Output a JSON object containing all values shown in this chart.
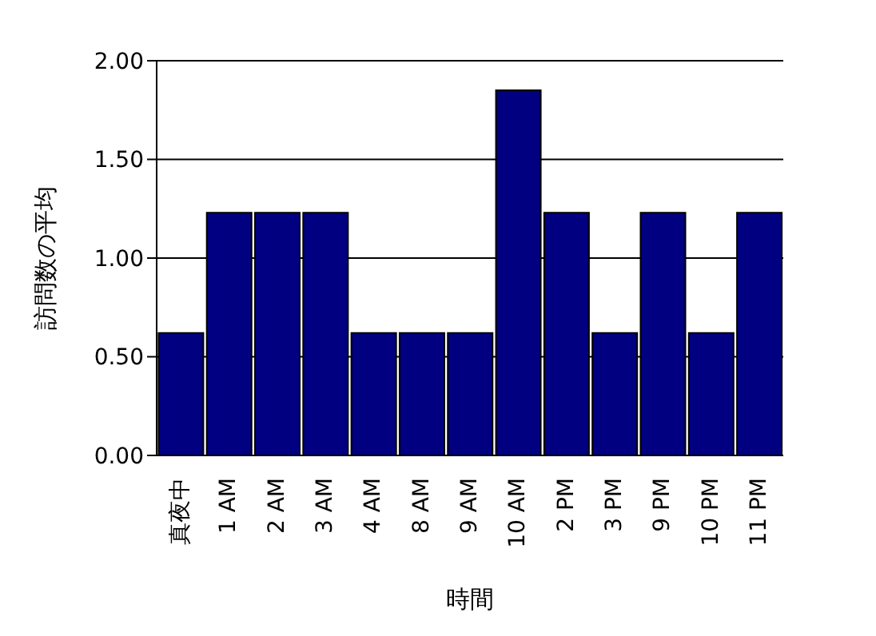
{
  "chart_data": {
    "type": "bar",
    "xlabel": "時間",
    "ylabel": "訪問数の平均",
    "categories": [
      "真夜中",
      "1 AM",
      "2 AM",
      "3 AM",
      "4 AM",
      "8 AM",
      "9 AM",
      "10 AM",
      "2 PM",
      "3 PM",
      "9 PM",
      "10 PM",
      "11 PM"
    ],
    "values": [
      0.62,
      1.23,
      1.23,
      1.23,
      0.62,
      0.62,
      0.62,
      1.85,
      1.23,
      0.62,
      1.23,
      0.62,
      1.23
    ],
    "color": "#000080",
    "ylim": [
      0,
      2
    ],
    "yticks": [
      {
        "value": 0,
        "label": "0.00"
      },
      {
        "value": 0.5,
        "label": "0.50"
      },
      {
        "value": 1,
        "label": "1.00"
      },
      {
        "value": 1.5,
        "label": "1.50"
      },
      {
        "value": 2,
        "label": "2.00"
      }
    ],
    "grid": "y",
    "legend": false
  }
}
